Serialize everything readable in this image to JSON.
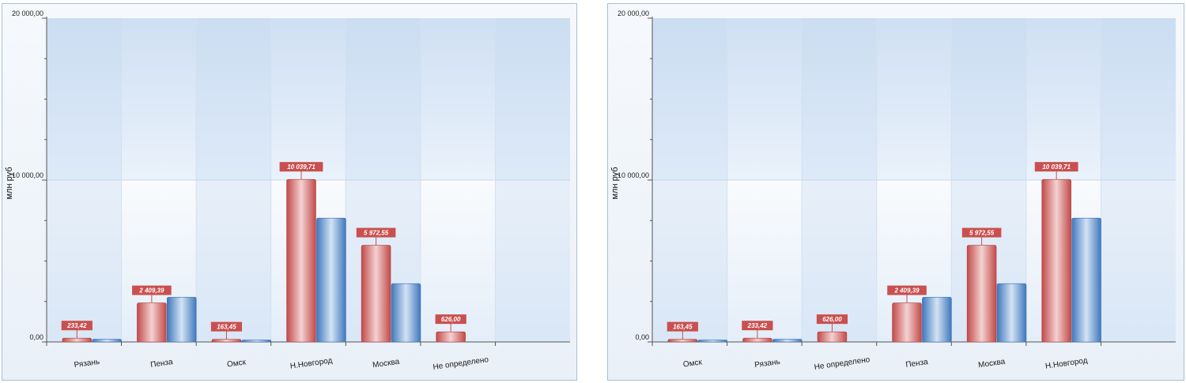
{
  "chart_data": [
    {
      "type": "bar",
      "ylabel": "млн руб",
      "ylim": [
        0,
        20000
      ],
      "ytick_labels": [
        "0,00",
        "10 000,00",
        "20 000,00"
      ],
      "categories": [
        "Рязань",
        "Пенза",
        "Омск",
        "Н.Новгород",
        "Москва",
        "Не определено"
      ],
      "series": [
        {
          "color": "#c9504f",
          "values": [
            233.42,
            2409.39,
            163.45,
            10039.71,
            5972.55,
            626.0
          ],
          "labels": [
            "233,42",
            "2 409,39",
            "163,45",
            "10 039,71",
            "5 972,55",
            "626,00"
          ]
        },
        {
          "color": "#4f86c6",
          "values": [
            170,
            2760,
            120,
            7650,
            3600,
            0
          ]
        }
      ]
    },
    {
      "type": "bar",
      "ylabel": "млн руб",
      "ylim": [
        0,
        20000
      ],
      "ytick_labels": [
        "0,00",
        "10 000,00",
        "20 000,00"
      ],
      "categories": [
        "Омск",
        "Рязань",
        "Не определено",
        "Пенза",
        "Москва",
        "Н.Новгород"
      ],
      "series": [
        {
          "color": "#c9504f",
          "values": [
            163.45,
            233.42,
            626.0,
            2409.39,
            5972.55,
            10039.71
          ],
          "labels": [
            "163,45",
            "233,42",
            "626,00",
            "2 409,39",
            "5 972,55",
            "10 039,71"
          ]
        },
        {
          "color": "#4f86c6",
          "values": [
            120,
            170,
            0,
            2760,
            3600,
            7650
          ]
        }
      ]
    }
  ]
}
